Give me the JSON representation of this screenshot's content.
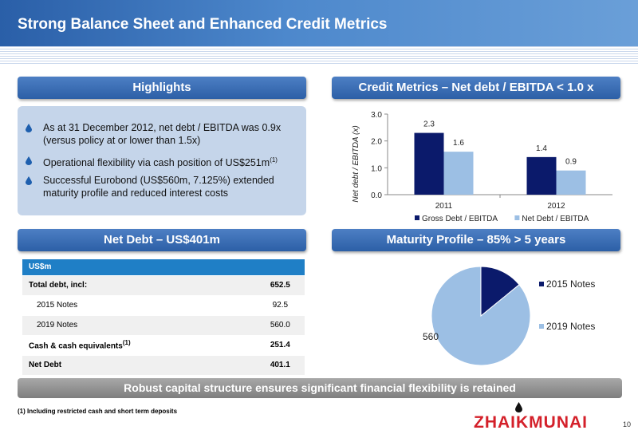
{
  "title": "Strong Balance Sheet and Enhanced Credit Metrics",
  "highlights": {
    "header": "Highlights",
    "bullets": [
      {
        "line1": "As at 31 December 2012, net debt / EBITDA was 0.9x",
        "line2": "(versus policy at or lower than 1.5x)"
      },
      {
        "line1": "Operational flexibility via cash position of US$251m",
        "sup": "(1)"
      },
      {
        "line1": "Successful Eurobond (US$560m, 7.125%) extended",
        "line2": "maturity profile and reduced interest costs"
      }
    ]
  },
  "net_debt": {
    "header": "Net Debt – US$401m",
    "unit_label": "US$m",
    "rows": [
      {
        "label": "Total debt, incl:",
        "value": "652.5"
      },
      {
        "label": "2015 Notes",
        "value": "92.5"
      },
      {
        "label": "2019 Notes",
        "value": "560.0"
      },
      {
        "label": "Cash & cash equivalents",
        "sup": "(1)",
        "value": "251.4"
      },
      {
        "label": "Net Debt",
        "value": "401.1"
      }
    ]
  },
  "credit_metrics": {
    "header": "Credit Metrics – Net debt / EBITDA < 1.0 x"
  },
  "maturity": {
    "header": "Maturity Profile – 85% > 5 years"
  },
  "chart_data": [
    {
      "type": "bar",
      "categories": [
        "2011",
        "2012"
      ],
      "series": [
        {
          "name": "Gross Debt / EBITDA",
          "values": [
            2.3,
            1.4
          ],
          "color": "#0b1a6b"
        },
        {
          "name": "Net Debt / EBITDA",
          "values": [
            1.6,
            0.9
          ],
          "color": "#9cbfe4"
        }
      ],
      "ylabel": "Net debt / EBITDA (x)",
      "ylim": [
        0,
        3.0
      ],
      "yticks": [
        "0.0",
        "1.0",
        "2.0",
        "3.0"
      ],
      "grid": false,
      "legend": "bottom"
    },
    {
      "type": "pie",
      "labels": [
        "2015 Notes",
        "2019 Notes"
      ],
      "values": [
        92,
        560
      ],
      "colors": [
        "#0b1a6b",
        "#9cbfe4"
      ],
      "legend": "right"
    }
  ],
  "bottom_banner": "Robust capital structure ensures significant financial flexibility is retained",
  "footnote": "(1) Including restricted cash and short term deposits",
  "logo": "ZHAIKMUNAI",
  "page_number": "10"
}
